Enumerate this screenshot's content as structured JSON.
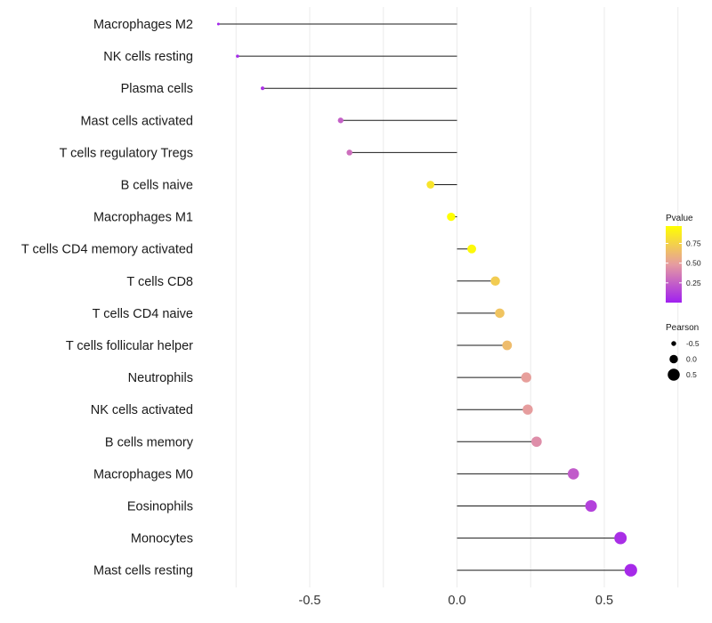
{
  "chart_data": {
    "type": "lollipop",
    "title": "",
    "xlabel": "",
    "ylabel": "",
    "xlim": [
      -0.81,
      0.85
    ],
    "x_ticks": [
      -0.5,
      0.0,
      0.5
    ],
    "x_tick_labels": [
      "-0.5",
      "0.0",
      "0.5"
    ],
    "categories": [
      "Macrophages M2",
      "NK cells resting",
      "Plasma cells",
      "Mast cells activated",
      "T cells regulatory  Tregs",
      "B cells naive",
      "Macrophages M1",
      "T cells CD4 memory activated",
      "T cells CD8",
      "T cells CD4 naive",
      "T cells follicular helper",
      "Neutrophils",
      "NK cells activated",
      "B cells memory",
      "Macrophages M0",
      "Eosinophils",
      "Monocytes",
      "Mast cells resting"
    ],
    "pearson": [
      -0.81,
      -0.745,
      -0.66,
      -0.395,
      -0.365,
      -0.09,
      -0.02,
      0.05,
      0.13,
      0.145,
      0.17,
      0.235,
      0.24,
      0.27,
      0.395,
      0.455,
      0.555,
      0.59
    ],
    "pvalue": [
      0.02,
      0.03,
      0.07,
      0.25,
      0.31,
      0.84,
      0.97,
      0.94,
      0.72,
      0.68,
      0.64,
      0.5,
      0.49,
      0.43,
      0.23,
      0.13,
      0.06,
      0.04
    ],
    "color_legend": {
      "title": "Pvalue",
      "ticks": [
        0.25,
        0.5,
        0.75
      ],
      "tick_labels": [
        "0.25",
        "0.50",
        "0.75"
      ],
      "range": [
        0.0,
        0.97
      ],
      "low_color": "#a020f0",
      "high_color": "#ffff00"
    },
    "size_legend": {
      "title": "Pearson",
      "values": [
        -0.5,
        0.0,
        0.5
      ],
      "labels": [
        "-0.5",
        "0.0",
        "0.5"
      ]
    }
  }
}
